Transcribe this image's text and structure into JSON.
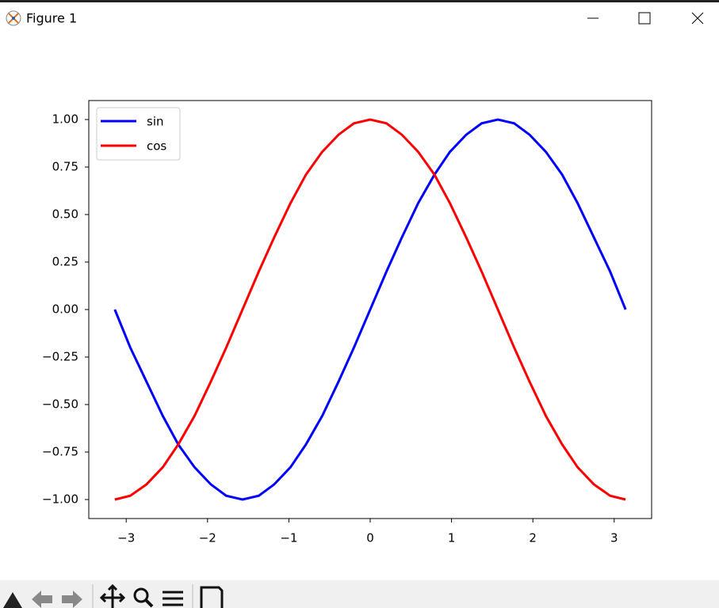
{
  "window": {
    "title": "Figure 1"
  },
  "chart_data": {
    "type": "line",
    "x": [
      -3.14,
      -2.95,
      -2.75,
      -2.55,
      -2.36,
      -2.16,
      -1.96,
      -1.77,
      -1.57,
      -1.37,
      -1.18,
      -0.98,
      -0.79,
      -0.59,
      -0.39,
      -0.2,
      0,
      0.2,
      0.39,
      0.59,
      0.79,
      0.98,
      1.18,
      1.37,
      1.57,
      1.77,
      1.96,
      2.16,
      2.36,
      2.55,
      2.75,
      2.95,
      3.14
    ],
    "series": [
      {
        "name": "sin",
        "color": "#0000ff",
        "values": [
          0,
          -0.2,
          -0.38,
          -0.56,
          -0.71,
          -0.83,
          -0.92,
          -0.98,
          -1,
          -0.98,
          -0.92,
          -0.83,
          -0.71,
          -0.56,
          -0.38,
          -0.2,
          0,
          0.2,
          0.38,
          0.56,
          0.71,
          0.83,
          0.92,
          0.98,
          1,
          0.98,
          0.92,
          0.83,
          0.71,
          0.56,
          0.38,
          0.2,
          0
        ]
      },
      {
        "name": "cos",
        "color": "#ff0000",
        "values": [
          -1,
          -0.98,
          -0.92,
          -0.83,
          -0.71,
          -0.56,
          -0.38,
          -0.2,
          0,
          0.2,
          0.38,
          0.56,
          0.71,
          0.83,
          0.92,
          0.98,
          1,
          0.98,
          0.92,
          0.83,
          0.71,
          0.56,
          0.38,
          0.2,
          0,
          -0.2,
          -0.38,
          -0.56,
          -0.71,
          -0.83,
          -0.92,
          -0.98,
          -1
        ]
      }
    ],
    "xlim": [
      -3.46,
      3.46
    ],
    "ylim": [
      -1.1,
      1.1
    ],
    "xticks": [
      {
        "value": -3,
        "label": "−3"
      },
      {
        "value": -2,
        "label": "−2"
      },
      {
        "value": -1,
        "label": "−1"
      },
      0,
      1,
      2,
      3
    ],
    "yticks": [
      {
        "value": -1,
        "label": "−1.00"
      },
      {
        "value": -0.75,
        "label": "−0.75"
      },
      {
        "value": -0.5,
        "label": "−0.50"
      },
      {
        "value": -0.25,
        "label": "−0.25"
      },
      {
        "value": 0,
        "label": "0.00"
      },
      {
        "value": 0.25,
        "label": "0.25"
      },
      {
        "value": 0.5,
        "label": "0.50"
      },
      {
        "value": 0.75,
        "label": "0.75"
      },
      {
        "value": 1,
        "label": "1.00"
      }
    ],
    "legend": "upper left",
    "grid": false
  }
}
